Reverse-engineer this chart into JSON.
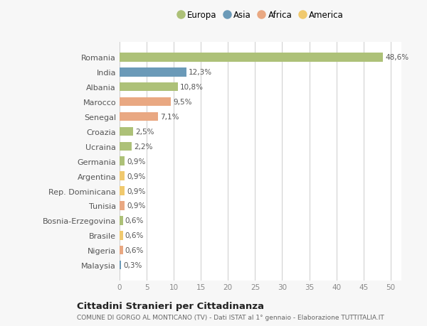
{
  "countries": [
    "Romania",
    "India",
    "Albania",
    "Marocco",
    "Senegal",
    "Croazia",
    "Ucraina",
    "Germania",
    "Argentina",
    "Rep. Dominicana",
    "Tunisia",
    "Bosnia-Erzegovina",
    "Brasile",
    "Nigeria",
    "Malaysia"
  ],
  "values": [
    48.6,
    12.3,
    10.8,
    9.5,
    7.1,
    2.5,
    2.2,
    0.9,
    0.9,
    0.9,
    0.9,
    0.6,
    0.6,
    0.6,
    0.3
  ],
  "labels": [
    "48,6%",
    "12,3%",
    "10,8%",
    "9,5%",
    "7,1%",
    "2,5%",
    "2,2%",
    "0,9%",
    "0,9%",
    "0,9%",
    "0,9%",
    "0,6%",
    "0,6%",
    "0,6%",
    "0,3%"
  ],
  "colors": [
    "#adc178",
    "#6b9ab8",
    "#adc178",
    "#e9a882",
    "#e9a882",
    "#adc178",
    "#adc178",
    "#adc178",
    "#f0c96e",
    "#f0c96e",
    "#e9a882",
    "#adc178",
    "#f0c96e",
    "#e9a882",
    "#6b9ab8"
  ],
  "legend_labels": [
    "Europa",
    "Asia",
    "Africa",
    "America"
  ],
  "legend_colors": [
    "#adc178",
    "#6b9ab8",
    "#e9a882",
    "#f0c96e"
  ],
  "title1": "Cittadini Stranieri per Cittadinanza",
  "title2": "COMUNE DI GORGO AL MONTICANO (TV) - Dati ISTAT al 1° gennaio - Elaborazione TUTTITALIA.IT",
  "xlim": [
    0,
    52
  ],
  "xticks": [
    0,
    5,
    10,
    15,
    20,
    25,
    30,
    35,
    40,
    45,
    50
  ],
  "bg_color": "#f7f7f7",
  "bar_area_color": "#ffffff"
}
